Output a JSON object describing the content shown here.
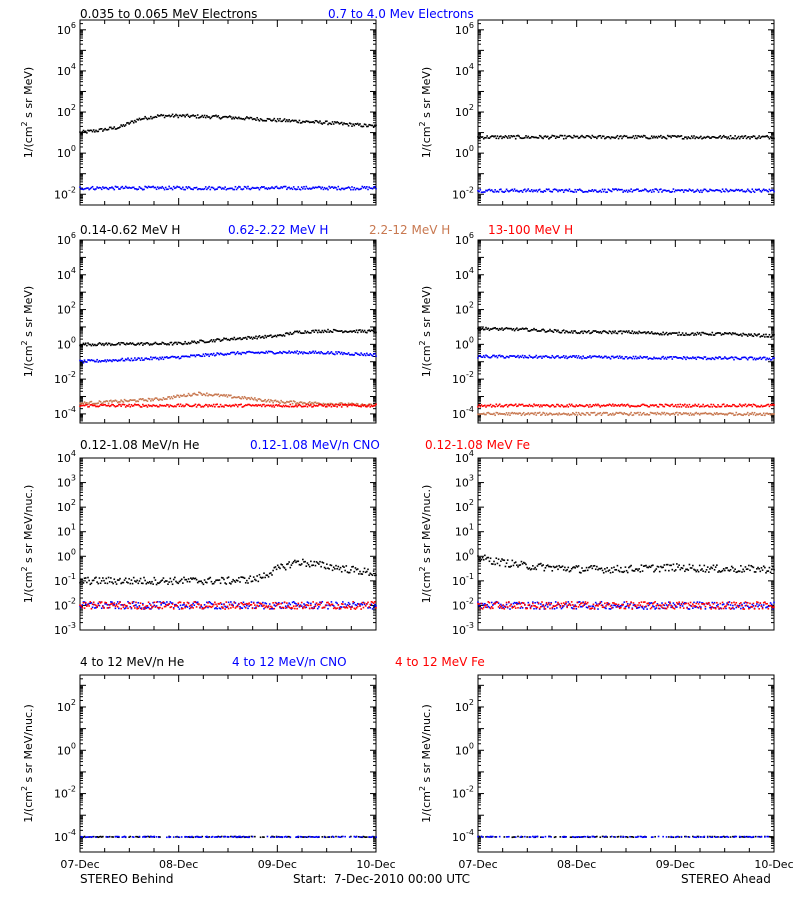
{
  "colors": {
    "black": "#000000",
    "blue": "#0000ff",
    "tan": "#c87850",
    "red": "#ff0000"
  },
  "x_axis": {
    "tick_labels": [
      "07-Dec",
      "08-Dec",
      "09-Dec",
      "10-Dec"
    ],
    "range_days": [
      0,
      3
    ],
    "minor_ticks_per_day": 4
  },
  "footer": {
    "left": "STEREO Behind",
    "center": "Start:  7-Dec-2010 00:00 UTC",
    "right": "STEREO Ahead"
  },
  "chart_data": [
    {
      "panel": "electrons-behind",
      "type": "scatter",
      "ylabel_prefix": "1/(cm",
      "ylabel_suffix": " s sr MeV)",
      "ylog": true,
      "ylim": [
        0.003,
        3000000
      ],
      "y_ticks": [
        {
          "m": "10",
          "e": "-2"
        },
        {
          "m": "10",
          "e": "0"
        },
        {
          "m": "10",
          "e": "2"
        },
        {
          "m": "10",
          "e": "4"
        },
        {
          "m": "10",
          "e": "6"
        }
      ],
      "legend": [
        {
          "text": "0.035 to 0.065 MeV Electrons",
          "color": "#000000"
        },
        {
          "text": "0.7 to 4.0 Mev Electrons",
          "color": "#0000ff"
        }
      ],
      "series": [
        {
          "color": "#000000",
          "x": [
            0,
            0.2,
            0.4,
            0.6,
            0.8,
            1.0,
            1.5,
            2.0,
            2.5,
            3.0
          ],
          "y": [
            10,
            13,
            18,
            45,
            65,
            65,
            55,
            40,
            30,
            20
          ]
        },
        {
          "color": "#0000ff",
          "x": [
            0,
            3
          ],
          "y": [
            0.02,
            0.02
          ]
        }
      ]
    },
    {
      "panel": "electrons-ahead",
      "type": "scatter",
      "ylabel_prefix": "1/(cm",
      "ylabel_suffix": " s sr MeV)",
      "ylog": true,
      "ylim": [
        0.003,
        3000000
      ],
      "y_ticks": [
        {
          "m": "10",
          "e": "-2"
        },
        {
          "m": "10",
          "e": "0"
        },
        {
          "m": "10",
          "e": "2"
        },
        {
          "m": "10",
          "e": "4"
        },
        {
          "m": "10",
          "e": "6"
        }
      ],
      "legend": [],
      "series": [
        {
          "color": "#000000",
          "x": [
            0,
            3
          ],
          "y": [
            6,
            6
          ]
        },
        {
          "color": "#0000ff",
          "x": [
            0,
            3
          ],
          "y": [
            0.015,
            0.015
          ]
        }
      ]
    },
    {
      "panel": "protons-behind",
      "type": "scatter",
      "ylabel_prefix": "1/(cm",
      "ylabel_suffix": " s sr MeV)",
      "ylog": true,
      "ylim": [
        3e-05,
        1000000
      ],
      "y_ticks": [
        {
          "m": "10",
          "e": "-4"
        },
        {
          "m": "10",
          "e": "-2"
        },
        {
          "m": "10",
          "e": "0"
        },
        {
          "m": "10",
          "e": "2"
        },
        {
          "m": "10",
          "e": "4"
        },
        {
          "m": "10",
          "e": "6"
        }
      ],
      "legend": [
        {
          "text": "0.14-0.62 MeV H",
          "color": "#000000"
        },
        {
          "text": "0.62-2.22 MeV H",
          "color": "#0000ff"
        },
        {
          "text": "2.2-12 MeV H",
          "color": "#c87850"
        },
        {
          "text": "13-100 MeV H",
          "color": "#ff0000"
        }
      ],
      "series": [
        {
          "color": "#000000",
          "x": [
            0,
            1.0,
            1.5,
            2.0,
            2.2,
            2.5,
            3.0
          ],
          "y": [
            1.0,
            1.1,
            2.0,
            3.0,
            5.0,
            6.0,
            5.5
          ]
        },
        {
          "color": "#0000ff",
          "x": [
            0,
            1.0,
            1.5,
            2.0,
            2.5,
            3.0
          ],
          "y": [
            0.1,
            0.18,
            0.3,
            0.35,
            0.33,
            0.25
          ]
        },
        {
          "color": "#c87850",
          "x": [
            0,
            0.8,
            1.2,
            1.6,
            2.0,
            3.0
          ],
          "y": [
            0.0004,
            0.0007,
            0.0015,
            0.0009,
            0.0005,
            0.0003
          ]
        },
        {
          "color": "#ff0000",
          "x": [
            0,
            3
          ],
          "y": [
            0.0003,
            0.0003
          ]
        }
      ]
    },
    {
      "panel": "protons-ahead",
      "type": "scatter",
      "ylabel_prefix": "1/(cm",
      "ylabel_suffix": " s sr MeV)",
      "ylog": true,
      "ylim": [
        3e-05,
        1000000
      ],
      "y_ticks": [
        {
          "m": "10",
          "e": "-4"
        },
        {
          "m": "10",
          "e": "-2"
        },
        {
          "m": "10",
          "e": "0"
        },
        {
          "m": "10",
          "e": "2"
        },
        {
          "m": "10",
          "e": "4"
        },
        {
          "m": "10",
          "e": "6"
        }
      ],
      "legend": [],
      "series": [
        {
          "color": "#000000",
          "x": [
            0,
            0.5,
            1.0,
            1.5,
            2.0,
            2.5,
            3.0
          ],
          "y": [
            8,
            7,
            5,
            5,
            4,
            4,
            3
          ]
        },
        {
          "color": "#0000ff",
          "x": [
            0,
            3
          ],
          "y": [
            0.2,
            0.15
          ]
        },
        {
          "color": "#c87850",
          "x": [
            0,
            3
          ],
          "y": [
            0.0001,
            0.0001
          ]
        },
        {
          "color": "#ff0000",
          "x": [
            0,
            3
          ],
          "y": [
            0.0003,
            0.0003
          ]
        }
      ]
    },
    {
      "panel": "heavy-low-behind",
      "type": "scatter",
      "ylabel_prefix": "1/(cm",
      "ylabel_suffix": " s sr MeV/nuc.)",
      "ylog": true,
      "ylim": [
        0.001,
        10000
      ],
      "y_ticks": [
        {
          "m": "10",
          "e": "-3"
        },
        {
          "m": "10",
          "e": "-2"
        },
        {
          "m": "10",
          "e": "-1"
        },
        {
          "m": "10",
          "e": "0"
        },
        {
          "m": "10",
          "e": "1"
        },
        {
          "m": "10",
          "e": "2"
        },
        {
          "m": "10",
          "e": "3"
        },
        {
          "m": "10",
          "e": "4"
        }
      ],
      "legend": [
        {
          "text": "0.12-1.08 MeV/n He",
          "color": "#000000"
        },
        {
          "text": "0.12-1.08 MeV/n CNO",
          "color": "#0000ff"
        },
        {
          "text": "0.12-1.08 MeV Fe",
          "color": "#ff0000"
        }
      ],
      "series": [
        {
          "color": "#000000",
          "x": [
            0,
            1.5,
            1.8,
            2.0,
            2.2,
            2.5,
            3.0
          ],
          "y": [
            0.1,
            0.1,
            0.12,
            0.3,
            0.6,
            0.4,
            0.2
          ]
        },
        {
          "color": "#0000ff",
          "x": [
            0,
            3
          ],
          "y": [
            0.01,
            0.01
          ]
        },
        {
          "color": "#ff0000",
          "x": [
            0,
            3
          ],
          "y": [
            0.01,
            0.01
          ]
        }
      ]
    },
    {
      "panel": "heavy-low-ahead",
      "type": "scatter",
      "ylabel_prefix": "1/(cm",
      "ylabel_suffix": " s sr MeV/nuc.)",
      "ylog": true,
      "ylim": [
        0.001,
        10000
      ],
      "y_ticks": [
        {
          "m": "10",
          "e": "-3"
        },
        {
          "m": "10",
          "e": "-2"
        },
        {
          "m": "10",
          "e": "-1"
        },
        {
          "m": "10",
          "e": "0"
        },
        {
          "m": "10",
          "e": "1"
        },
        {
          "m": "10",
          "e": "2"
        },
        {
          "m": "10",
          "e": "3"
        },
        {
          "m": "10",
          "e": "4"
        }
      ],
      "legend": [],
      "series": [
        {
          "color": "#000000",
          "x": [
            0,
            0.2,
            0.5,
            1.0,
            1.5,
            2.0,
            2.5,
            3.0
          ],
          "y": [
            0.9,
            0.6,
            0.4,
            0.3,
            0.3,
            0.35,
            0.3,
            0.3
          ]
        },
        {
          "color": "#0000ff",
          "x": [
            0,
            3
          ],
          "y": [
            0.01,
            0.01
          ]
        },
        {
          "color": "#ff0000",
          "x": [
            0,
            3
          ],
          "y": [
            0.01,
            0.01
          ]
        }
      ]
    },
    {
      "panel": "heavy-high-behind",
      "type": "scatter",
      "ylabel_prefix": "1/(cm",
      "ylabel_suffix": " s sr MeV/nuc.)",
      "ylog": true,
      "ylim": [
        2e-05,
        3000
      ],
      "y_ticks": [
        {
          "m": "10",
          "e": "-4"
        },
        {
          "m": "10",
          "e": "-2"
        },
        {
          "m": "10",
          "e": "0"
        },
        {
          "m": "10",
          "e": "2"
        }
      ],
      "legend": [
        {
          "text": "4 to 12 MeV/n He",
          "color": "#000000"
        },
        {
          "text": "4 to 12 MeV/n CNO",
          "color": "#0000ff"
        },
        {
          "text": "4 to 12 MeV Fe",
          "color": "#ff0000"
        }
      ],
      "series": [
        {
          "color": "#000000",
          "x": [
            0,
            3
          ],
          "y": [
            0.0001,
            0.0001
          ]
        },
        {
          "color": "#0000ff",
          "x": [
            0,
            3
          ],
          "y": [
            0.0001,
            0.0001
          ]
        }
      ]
    },
    {
      "panel": "heavy-high-ahead",
      "type": "scatter",
      "ylabel_prefix": "1/(cm",
      "ylabel_suffix": " s sr MeV/nuc.)",
      "ylog": true,
      "ylim": [
        2e-05,
        3000
      ],
      "y_ticks": [
        {
          "m": "10",
          "e": "-4"
        },
        {
          "m": "10",
          "e": "-2"
        },
        {
          "m": "10",
          "e": "0"
        },
        {
          "m": "10",
          "e": "2"
        }
      ],
      "legend": [],
      "series": [
        {
          "color": "#000000",
          "x": [
            0,
            3
          ],
          "y": [
            0.0001,
            0.0001
          ]
        },
        {
          "color": "#0000ff",
          "x": [
            0,
            3
          ],
          "y": [
            0.0001,
            0.0001
          ]
        }
      ]
    }
  ]
}
